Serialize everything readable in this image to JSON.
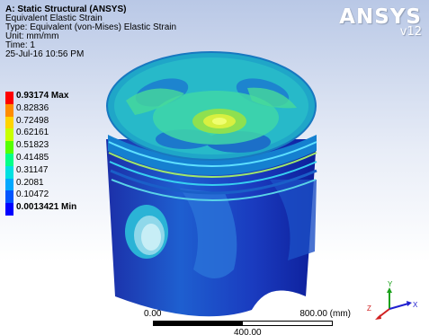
{
  "header": {
    "title": "A: Static Structural (ANSYS)",
    "result_name": "Equivalent Elastic Strain",
    "type": "Type: Equivalent (von-Mises) Elastic Strain",
    "unit": "Unit: mm/mm",
    "time": "Time: 1",
    "date": "25-Jul-16 10:56 PM"
  },
  "legend": [
    {
      "label": "0.93174 Max",
      "color": "#ff0000"
    },
    {
      "label": "0.82836",
      "color": "#ff8c00"
    },
    {
      "label": "0.72498",
      "color": "#ffd400"
    },
    {
      "label": "0.62161",
      "color": "#c8ff00"
    },
    {
      "label": "0.51823",
      "color": "#55ff00"
    },
    {
      "label": "0.41485",
      "color": "#00ff88"
    },
    {
      "label": "0.31147",
      "color": "#00e0e0"
    },
    {
      "label": "0.2081",
      "color": "#00a8ff"
    },
    {
      "label": "0.10472",
      "color": "#0055ff"
    },
    {
      "label": "0.0013421 Min",
      "color": "#0000ff"
    }
  ],
  "logo": {
    "brand": "ANSYS",
    "version": "v12"
  },
  "scale": {
    "start": "0.00",
    "end": "800.00 (mm)",
    "mid": "400.00"
  },
  "triad": {
    "x": "X",
    "y": "Y",
    "z": "Z"
  },
  "colors": {
    "max": "#ff0000",
    "min": "#0000ff",
    "body_mid": "#1f8fd6",
    "body_low": "#1a3bbf"
  }
}
